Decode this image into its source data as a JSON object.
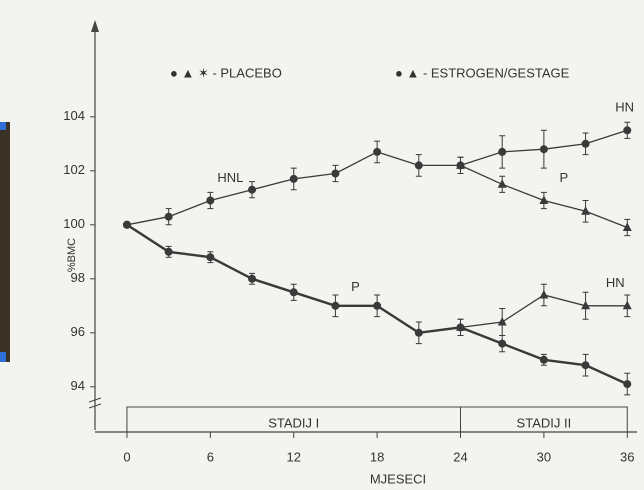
{
  "chart_data": {
    "type": "line",
    "legend": [
      "● ▲ ✶ - PLACEBO",
      "● ▲ - ESTROGEN/GESTAGE"
    ],
    "xlabel": "MJESECI",
    "ylabel": "%BMC",
    "x": [
      0,
      3,
      6,
      9,
      12,
      15,
      18,
      21,
      24,
      27,
      30,
      33,
      36
    ],
    "xlim": [
      -2.3,
      36.7
    ],
    "xticks": [
      0,
      6,
      12,
      18,
      24,
      30,
      36
    ],
    "ylim": [
      92.4,
      107.4
    ],
    "yticks": [
      94,
      96,
      98,
      100,
      102,
      104
    ],
    "color": "#3a3a3a",
    "series": [
      {
        "name": "HNL",
        "marker": "circle",
        "width": 1.3,
        "values": [
          100,
          100.3,
          100.9,
          101.3,
          101.7,
          101.9,
          102.7,
          102.2,
          102.2,
          102.7,
          102.8,
          103.0,
          103.5
        ],
        "errors": [
          0.1,
          0.3,
          0.3,
          0.3,
          0.4,
          0.3,
          0.4,
          0.4,
          0.3,
          0.6,
          0.7,
          0.4,
          0.3
        ]
      },
      {
        "name": "P",
        "marker": "triangle",
        "width": 1.3,
        "values": [
          null,
          null,
          null,
          null,
          null,
          null,
          null,
          null,
          102.2,
          101.5,
          100.9,
          100.5,
          99.9
        ],
        "errors": [
          null,
          null,
          null,
          null,
          null,
          null,
          null,
          null,
          0.3,
          0.3,
          0.3,
          0.4,
          0.3
        ]
      },
      {
        "name": "P",
        "marker": "circle",
        "width": 2.4,
        "values": [
          100,
          99.0,
          98.8,
          98.0,
          97.5,
          97.0,
          97.0,
          96.0,
          96.2,
          95.6,
          95.0,
          94.8,
          94.1
        ],
        "errors": [
          0.1,
          0.2,
          0.2,
          0.2,
          0.3,
          0.4,
          0.4,
          0.4,
          0.3,
          0.3,
          0.2,
          0.4,
          0.4
        ]
      },
      {
        "name": "HN",
        "marker": "triangle",
        "width": 1.3,
        "values": [
          null,
          null,
          null,
          null,
          null,
          null,
          null,
          null,
          96.2,
          96.4,
          97.4,
          97.0,
          97.0
        ],
        "errors": [
          null,
          null,
          null,
          null,
          null,
          null,
          null,
          null,
          0.3,
          0.5,
          0.4,
          0.5,
          0.4
        ]
      }
    ],
    "annotations": [
      "HN"
    ],
    "stages": [
      {
        "label": "STADIJ I",
        "start": 0,
        "end": 24
      },
      {
        "label": "STADIJ II",
        "start": 24,
        "end": 36
      }
    ]
  }
}
